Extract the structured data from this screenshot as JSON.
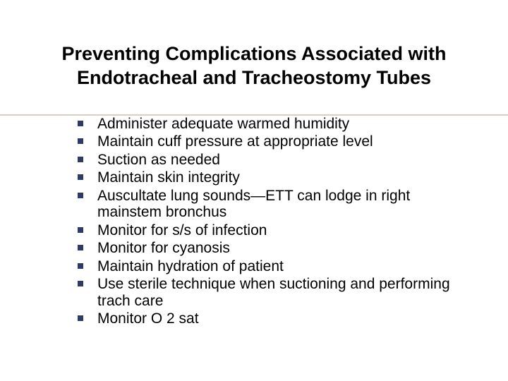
{
  "title": "Preventing Complications Associated with Endotracheal and Tracheostomy Tubes",
  "bullets": [
    "Administer adequate warmed humidity",
    "Maintain cuff pressure at appropriate level",
    "Suction as needed",
    "Maintain skin integrity",
    "Auscultate lung sounds—ETT can lodge in right mainstem bronchus",
    "Monitor for s/s of infection",
    "Monitor for cyanosis",
    "Maintain hydration of patient",
    "Use sterile technique when suctioning and performing trach care",
    "Monitor O 2 sat"
  ],
  "colors": {
    "bullet": "#2f3a66",
    "divider": "#d8d0c0",
    "text": "#000000",
    "background": "#ffffff"
  },
  "typography": {
    "title_fontsize": 27,
    "title_weight": "bold",
    "body_fontsize": 21,
    "font_family": "Arial"
  }
}
